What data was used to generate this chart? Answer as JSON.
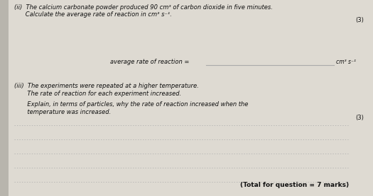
{
  "bg_color": "#c8c6be",
  "left_margin_color": "#dedad2",
  "paper_color": "#dedad2",
  "text_color": "#111111",
  "line_color": "#aaaaaa",
  "title_ii": "(ii)  The calcium carbonate powder produced 90 cm³ of carbon dioxide in five minutes.",
  "title_ii2": "      Calculate the average rate of reaction in cm³ s⁻¹.",
  "marks_ii": "(3)",
  "answer_label": "average rate of reaction = ",
  "answer_units": "cm³ s⁻¹",
  "title_iii_a": "(iii)  The experiments were repeated at a higher temperature.",
  "title_iii_b": "       The rate of reaction for each experiment increased.",
  "explain_line1": "       Explain, in terms of particles, why the rate of reaction increased when the",
  "explain_line2": "       temperature was increased.",
  "marks_iii": "(3)",
  "total": "(Total for question = 7 marks)",
  "figsize": [
    5.25,
    2.77
  ],
  "dpi": 100
}
